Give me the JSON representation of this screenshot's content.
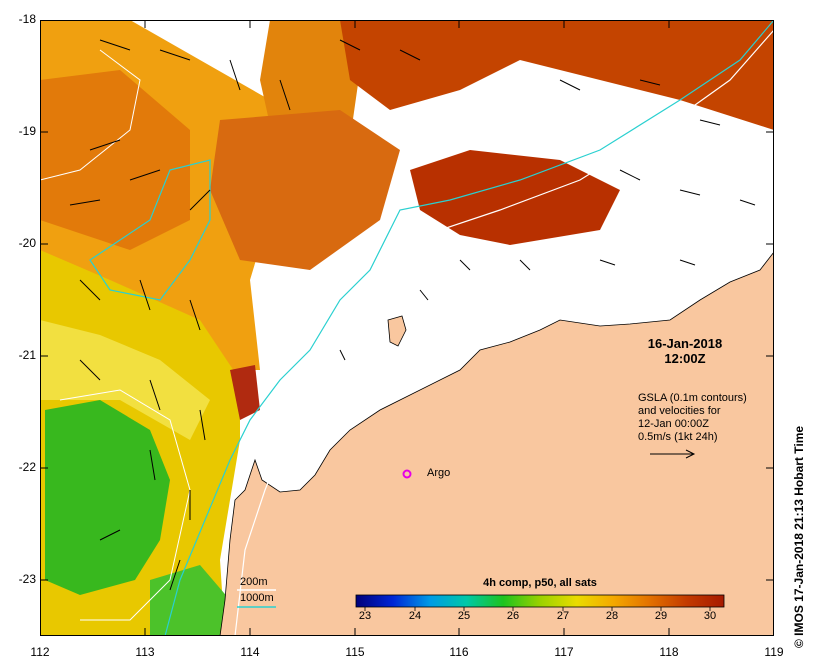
{
  "map": {
    "colors": {
      "land": "#f9c79f",
      "contour_200m": "#ffffff",
      "contour_1000m": "#2ad0d0",
      "argo": "#e600e6",
      "no_data": "#ffffff"
    },
    "x_axis": {
      "ticks": [
        "112",
        "113",
        "114",
        "115",
        "116",
        "117",
        "118",
        "119"
      ],
      "range": [
        112,
        119
      ]
    },
    "y_axis": {
      "ticks": [
        "-18",
        "-19",
        "-20",
        "-21",
        "-22",
        "-23"
      ],
      "range": [
        -23.5,
        -18
      ]
    },
    "date": {
      "day": "16-Jan-2018",
      "time": "12:00Z"
    },
    "gsla_note": [
      "GSLA (0.1m contours)",
      "and velocities for",
      "12-Jan 00:00Z",
      "0.5m/s (1kt 24h)"
    ],
    "argo": {
      "label": "Argo",
      "lon": 115.5,
      "lat": -22.05
    },
    "legend": {
      "contour_200m": "200m",
      "contour_1000m": "1000m"
    },
    "colorbar": {
      "title": "4h comp, p50, all sats",
      "ticks": [
        "23",
        "24",
        "25",
        "26",
        "27",
        "28",
        "29",
        "30"
      ],
      "range": [
        22.6,
        30.4
      ],
      "stops": [
        "#00007a",
        "#0026d6",
        "#009ae6",
        "#00c8a8",
        "#1ec31e",
        "#9ad200",
        "#eadc00",
        "#f4a800",
        "#e27000",
        "#c33a00",
        "#a61a00"
      ]
    },
    "credit": "© IMOS 17-Jan-2018 21:13 Hobart Time"
  }
}
